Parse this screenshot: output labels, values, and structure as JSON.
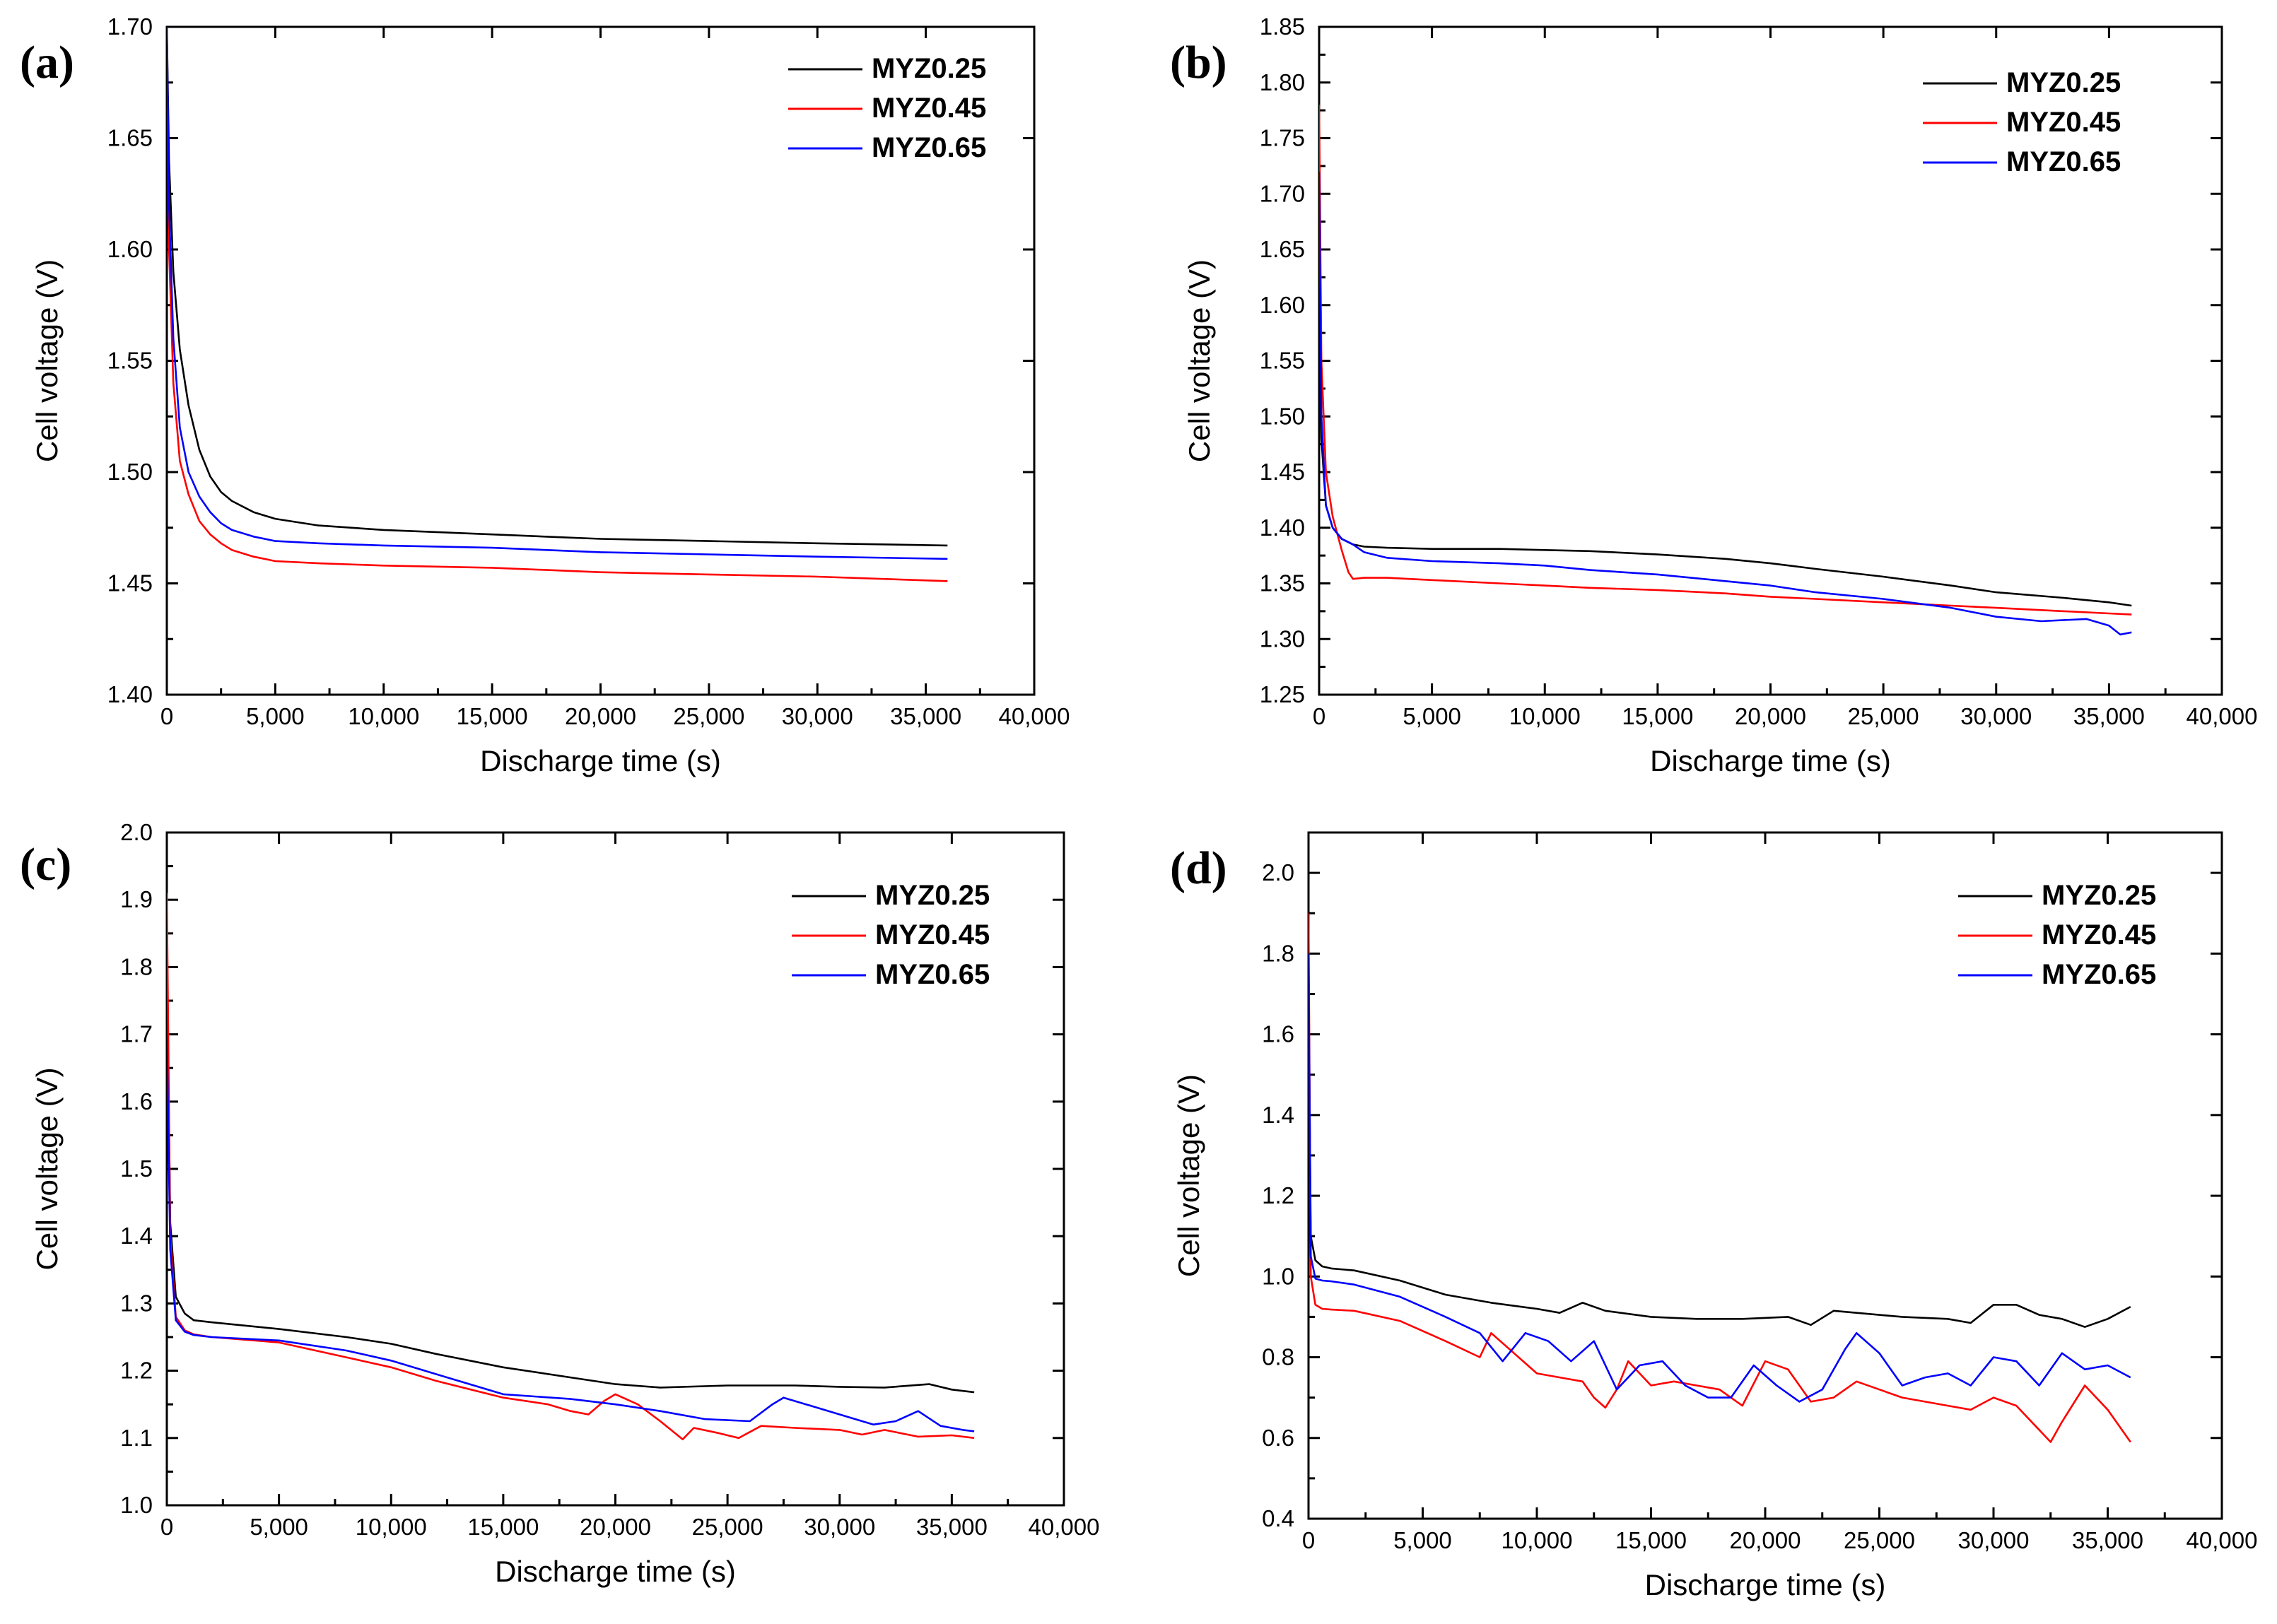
{
  "figure": {
    "xlabel": "Discharge time (s)",
    "ylabel": "Cell voltage (V)",
    "legend": [
      "MYZ0.25",
      "MYZ0.45",
      "MYZ0.65"
    ]
  },
  "colors": {
    "MYZ0.25": "#000000",
    "MYZ0.45": "#ff0000",
    "MYZ0.65": "#0000ff"
  },
  "chart_data": [
    {
      "panel": "(a)",
      "type": "line",
      "xlabel": "Discharge time (s)",
      "ylabel": "Cell voltage (V)",
      "xlim": [
        0,
        40000
      ],
      "ylim": [
        1.4,
        1.7
      ],
      "xticks": [
        0,
        5000,
        10000,
        15000,
        20000,
        25000,
        30000,
        35000,
        40000
      ],
      "xtick_labels": [
        "0",
        "5,000",
        "10,000",
        "15,000",
        "20,000",
        "25,000",
        "30,000",
        "35,000",
        "40,000"
      ],
      "yticks": [
        1.4,
        1.45,
        1.5,
        1.55,
        1.6,
        1.65,
        1.7
      ],
      "ytick_labels": [
        "1.40",
        "1.45",
        "1.50",
        "1.55",
        "1.60",
        "1.65",
        "1.70"
      ],
      "legend_position": "top-right",
      "series": [
        {
          "name": "MYZ0.25",
          "x": [
            0,
            100,
            300,
            600,
            1000,
            1500,
            2000,
            2500,
            3000,
            4000,
            5000,
            7000,
            10000,
            15000,
            20000,
            25000,
            30000,
            36000
          ],
          "y": [
            1.7,
            1.64,
            1.59,
            1.555,
            1.53,
            1.51,
            1.498,
            1.491,
            1.487,
            1.482,
            1.479,
            1.476,
            1.474,
            1.472,
            1.47,
            1.469,
            1.468,
            1.467
          ]
        },
        {
          "name": "MYZ0.45",
          "x": [
            0,
            100,
            300,
            600,
            1000,
            1500,
            2000,
            2500,
            3000,
            4000,
            5000,
            7000,
            10000,
            15000,
            20000,
            25000,
            30000,
            36000
          ],
          "y": [
            1.7,
            1.6,
            1.54,
            1.505,
            1.49,
            1.478,
            1.472,
            1.468,
            1.465,
            1.462,
            1.46,
            1.459,
            1.458,
            1.457,
            1.455,
            1.454,
            1.453,
            1.451
          ]
        },
        {
          "name": "MYZ0.65",
          "x": [
            0,
            100,
            300,
            600,
            1000,
            1500,
            2000,
            2500,
            3000,
            4000,
            5000,
            7000,
            10000,
            15000,
            20000,
            25000,
            30000,
            36000
          ],
          "y": [
            1.7,
            1.62,
            1.56,
            1.52,
            1.5,
            1.489,
            1.482,
            1.477,
            1.474,
            1.471,
            1.469,
            1.468,
            1.467,
            1.466,
            1.464,
            1.463,
            1.462,
            1.461
          ]
        }
      ]
    },
    {
      "panel": "(b)",
      "type": "line",
      "xlabel": "Discharge time (s)",
      "ylabel": "Cell voltage (V)",
      "xlim": [
        0,
        40000
      ],
      "ylim": [
        1.25,
        1.85
      ],
      "xticks": [
        0,
        5000,
        10000,
        15000,
        20000,
        25000,
        30000,
        35000,
        40000
      ],
      "xtick_labels": [
        "0",
        "5,000",
        "10,000",
        "15,000",
        "20,000",
        "25,000",
        "30,000",
        "35,000",
        "40,000"
      ],
      "yticks": [
        1.25,
        1.3,
        1.35,
        1.4,
        1.45,
        1.5,
        1.55,
        1.6,
        1.65,
        1.7,
        1.75,
        1.8,
        1.85
      ],
      "ytick_labels": [
        "1.25",
        "1.30",
        "1.35",
        "1.40",
        "1.45",
        "1.50",
        "1.55",
        "1.60",
        "1.65",
        "1.70",
        "1.75",
        "1.80",
        "1.85"
      ],
      "legend_position": "top-right",
      "series": [
        {
          "name": "MYZ0.25",
          "x": [
            0,
            100,
            300,
            600,
            1000,
            1500,
            2000,
            3000,
            5000,
            8000,
            10000,
            12000,
            15000,
            18000,
            20000,
            22000,
            25000,
            28000,
            30000,
            33000,
            35000,
            36000
          ],
          "y": [
            1.6,
            1.48,
            1.42,
            1.4,
            1.39,
            1.385,
            1.383,
            1.382,
            1.381,
            1.381,
            1.38,
            1.379,
            1.376,
            1.372,
            1.368,
            1.363,
            1.356,
            1.348,
            1.342,
            1.337,
            1.333,
            1.33
          ]
        },
        {
          "name": "MYZ0.45",
          "x": [
            0,
            100,
            300,
            600,
            1000,
            1300,
            1500,
            2000,
            3000,
            5000,
            8000,
            10000,
            12000,
            15000,
            18000,
            20000,
            22000,
            25000,
            28000,
            30000,
            33000,
            35000,
            36000
          ],
          "y": [
            1.78,
            1.55,
            1.45,
            1.41,
            1.38,
            1.36,
            1.354,
            1.355,
            1.355,
            1.353,
            1.35,
            1.348,
            1.346,
            1.344,
            1.341,
            1.338,
            1.336,
            1.333,
            1.33,
            1.328,
            1.325,
            1.323,
            1.322
          ]
        },
        {
          "name": "MYZ0.65",
          "x": [
            0,
            100,
            300,
            600,
            1000,
            1500,
            2000,
            3000,
            5000,
            8000,
            10000,
            12000,
            15000,
            18000,
            20000,
            22000,
            25000,
            28000,
            30000,
            32000,
            34000,
            35000,
            35500,
            36000
          ],
          "y": [
            1.72,
            1.5,
            1.42,
            1.4,
            1.39,
            1.385,
            1.378,
            1.373,
            1.37,
            1.368,
            1.366,
            1.362,
            1.358,
            1.352,
            1.348,
            1.342,
            1.336,
            1.328,
            1.32,
            1.316,
            1.318,
            1.312,
            1.304,
            1.306
          ]
        }
      ]
    },
    {
      "panel": "(c)",
      "type": "line",
      "xlabel": "Discharge time (s)",
      "ylabel": "Cell voltage (V)",
      "xlim": [
        0,
        40000
      ],
      "ylim": [
        1.0,
        2.0
      ],
      "xticks": [
        0,
        5000,
        10000,
        15000,
        20000,
        25000,
        30000,
        35000,
        40000
      ],
      "xtick_labels": [
        "0",
        "5,000",
        "10,000",
        "15,000",
        "20,000",
        "25,000",
        "30,000",
        "35,000",
        "40,000"
      ],
      "yticks": [
        1.0,
        1.1,
        1.2,
        1.3,
        1.4,
        1.5,
        1.6,
        1.7,
        1.8,
        1.9,
        2.0
      ],
      "ytick_labels": [
        "1.0",
        "1.1",
        "1.2",
        "1.3",
        "1.4",
        "1.5",
        "1.6",
        "1.7",
        "1.8",
        "1.9",
        "2.0"
      ],
      "legend_position": "top-right",
      "series": [
        {
          "name": "MYZ0.25",
          "x": [
            0,
            150,
            400,
            800,
            1200,
            2000,
            5000,
            8000,
            10000,
            12000,
            15000,
            18000,
            20000,
            22000,
            25000,
            28000,
            30000,
            32000,
            34000,
            35000,
            36000
          ],
          "y": [
            1.82,
            1.42,
            1.31,
            1.285,
            1.275,
            1.272,
            1.262,
            1.25,
            1.24,
            1.225,
            1.205,
            1.19,
            1.18,
            1.175,
            1.178,
            1.178,
            1.176,
            1.175,
            1.18,
            1.172,
            1.168
          ]
        },
        {
          "name": "MYZ0.45",
          "x": [
            0,
            150,
            400,
            800,
            1200,
            2000,
            5000,
            8000,
            10000,
            12000,
            15000,
            17000,
            18000,
            18800,
            19500,
            20000,
            21000,
            22000,
            23000,
            23500,
            24500,
            25500,
            26500,
            28000,
            30000,
            31000,
            32000,
            33500,
            35000,
            36000
          ],
          "y": [
            1.91,
            1.4,
            1.28,
            1.26,
            1.254,
            1.25,
            1.242,
            1.22,
            1.205,
            1.185,
            1.16,
            1.15,
            1.14,
            1.135,
            1.155,
            1.165,
            1.15,
            1.125,
            1.098,
            1.115,
            1.108,
            1.1,
            1.118,
            1.115,
            1.112,
            1.105,
            1.112,
            1.102,
            1.104,
            1.1
          ]
        },
        {
          "name": "MYZ0.65",
          "x": [
            0,
            150,
            400,
            800,
            1200,
            2000,
            5000,
            8000,
            10000,
            12000,
            15000,
            18000,
            20000,
            22000,
            24000,
            26000,
            27000,
            27500,
            28500,
            30000,
            31500,
            32500,
            33500,
            34500,
            35500,
            36000
          ],
          "y": [
            1.7,
            1.38,
            1.275,
            1.258,
            1.253,
            1.25,
            1.245,
            1.23,
            1.215,
            1.195,
            1.165,
            1.158,
            1.15,
            1.14,
            1.128,
            1.125,
            1.15,
            1.16,
            1.15,
            1.135,
            1.12,
            1.125,
            1.14,
            1.118,
            1.112,
            1.11
          ]
        }
      ]
    },
    {
      "panel": "(d)",
      "type": "line",
      "xlabel": "Discharge time (s)",
      "ylabel": "Cell voltage (V)",
      "xlim": [
        0,
        40000
      ],
      "ylim": [
        0.4,
        2.1
      ],
      "xticks": [
        0,
        5000,
        10000,
        15000,
        20000,
        25000,
        30000,
        35000,
        40000
      ],
      "xtick_labels": [
        "0",
        "5,000",
        "10,000",
        "15,000",
        "20,000",
        "25,000",
        "30,000",
        "35,000",
        "40,000"
      ],
      "yticks": [
        0.4,
        0.6,
        0.8,
        1.0,
        1.2,
        1.4,
        1.6,
        1.8,
        2.0
      ],
      "ytick_labels": [
        "0.4",
        "0.6",
        "0.8",
        "1.0",
        "1.2",
        "1.4",
        "1.6",
        "1.8",
        "2.0"
      ],
      "legend_position": "top-right",
      "series": [
        {
          "name": "MYZ0.25",
          "x": [
            0,
            100,
            300,
            600,
            1000,
            2000,
            4000,
            6000,
            8000,
            10000,
            11000,
            12000,
            13000,
            15000,
            17000,
            19000,
            21000,
            22000,
            23000,
            24000,
            26000,
            28000,
            29000,
            30000,
            31000,
            32000,
            33000,
            34000,
            35000,
            36000
          ],
          "y": [
            1.75,
            1.1,
            1.04,
            1.025,
            1.02,
            1.015,
            0.99,
            0.955,
            0.935,
            0.92,
            0.91,
            0.935,
            0.915,
            0.9,
            0.895,
            0.895,
            0.9,
            0.88,
            0.915,
            0.91,
            0.9,
            0.895,
            0.885,
            0.93,
            0.93,
            0.905,
            0.895,
            0.875,
            0.895,
            0.925
          ]
        },
        {
          "name": "MYZ0.45",
          "x": [
            0,
            100,
            300,
            600,
            1000,
            2000,
            4000,
            6000,
            7500,
            8000,
            9000,
            10000,
            11000,
            12000,
            12500,
            13000,
            13500,
            14000,
            15000,
            16000,
            17000,
            18000,
            19000,
            20000,
            21000,
            22000,
            23000,
            24000,
            25000,
            26000,
            27000,
            28000,
            29000,
            30000,
            31000,
            32000,
            32500,
            33000,
            34000,
            35000,
            36000
          ],
          "y": [
            1.9,
            1.0,
            0.93,
            0.92,
            0.918,
            0.915,
            0.89,
            0.84,
            0.8,
            0.86,
            0.81,
            0.76,
            0.75,
            0.74,
            0.7,
            0.675,
            0.72,
            0.79,
            0.73,
            0.74,
            0.73,
            0.72,
            0.68,
            0.79,
            0.77,
            0.69,
            0.7,
            0.74,
            0.72,
            0.7,
            0.69,
            0.68,
            0.67,
            0.7,
            0.68,
            0.62,
            0.59,
            0.64,
            0.73,
            0.67,
            0.59
          ]
        },
        {
          "name": "MYZ0.65",
          "x": [
            0,
            100,
            300,
            600,
            1000,
            2000,
            4000,
            6000,
            7500,
            8500,
            9500,
            10500,
            11500,
            12500,
            13500,
            14500,
            15500,
            16500,
            17500,
            18500,
            19500,
            20500,
            21500,
            22500,
            23500,
            24000,
            25000,
            26000,
            27000,
            28000,
            29000,
            30000,
            31000,
            32000,
            33000,
            34000,
            35000,
            36000
          ],
          "y": [
            1.8,
            1.05,
            0.995,
            0.99,
            0.988,
            0.98,
            0.95,
            0.9,
            0.86,
            0.79,
            0.86,
            0.84,
            0.79,
            0.84,
            0.72,
            0.78,
            0.79,
            0.73,
            0.7,
            0.7,
            0.78,
            0.73,
            0.69,
            0.72,
            0.82,
            0.86,
            0.81,
            0.73,
            0.75,
            0.76,
            0.73,
            0.8,
            0.79,
            0.73,
            0.81,
            0.77,
            0.78,
            0.75
          ]
        }
      ]
    }
  ]
}
